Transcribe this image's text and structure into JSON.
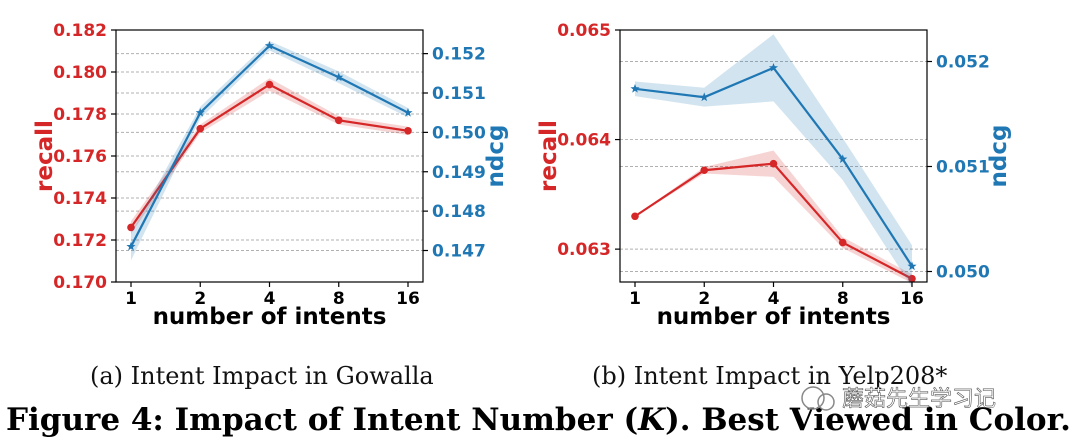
{
  "figure": {
    "caption": "Figure 4: Impact of Intent Number (K). Best Viewed in Color.",
    "caption_parts": {
      "before": "Figure 4: Impact of Intent Number (",
      "var": "K",
      "after": "). Best Viewed in Color."
    },
    "watermark": "蘑菇先生学习记"
  },
  "colors": {
    "recall": "#d62728",
    "ndcg": "#1f77b4",
    "grid": "#b0b0b0"
  },
  "chart_data": [
    {
      "type": "line",
      "subcaption": "(a)  Intent Impact in Gowalla",
      "xlabel": "number of intents",
      "ylabel_left": "recall",
      "ylabel_right": "ndcg",
      "categories": [
        "1",
        "2",
        "4",
        "8",
        "16"
      ],
      "ylim_left": [
        0.17,
        0.182
      ],
      "yticks_left": [
        0.17,
        0.172,
        0.174,
        0.176,
        0.178,
        0.18,
        0.182
      ],
      "yticklabels_left": [
        "0.170",
        "0.172",
        "0.174",
        "0.176",
        "0.178",
        "0.180",
        "0.182"
      ],
      "ylim_right": [
        0.1462,
        0.1526
      ],
      "yticks_right": [
        0.147,
        0.148,
        0.149,
        0.15,
        0.151,
        0.152
      ],
      "yticklabels_right": [
        "0.147",
        "0.148",
        "0.149",
        "0.150",
        "0.151",
        "0.152"
      ],
      "series": [
        {
          "name": "recall",
          "axis": "left",
          "marker": "circle",
          "values": [
            0.1726,
            0.1773,
            0.1794,
            0.1777,
            0.1772
          ],
          "band": [
            0.0003,
            0.0002,
            0.0003,
            0.0002,
            0.0002
          ]
        },
        {
          "name": "ndcg",
          "axis": "right",
          "marker": "star",
          "values": [
            0.1471,
            0.1505,
            0.1522,
            0.1514,
            0.1505
          ],
          "band": [
            0.00035,
            0.00015,
            0.00012,
            0.00015,
            0.00012
          ]
        }
      ]
    },
    {
      "type": "line",
      "subcaption": "(b)  Intent Impact in Yelp208*",
      "xlabel": "number of intents",
      "ylabel_left": "recall",
      "ylabel_right": "ndcg",
      "categories": [
        "1",
        "2",
        "4",
        "8",
        "16"
      ],
      "ylim_left": [
        0.0627,
        0.065
      ],
      "yticks_left": [
        0.063,
        0.064,
        0.065
      ],
      "yticklabels_left": [
        "0.063",
        "0.064",
        "0.065"
      ],
      "ylim_right": [
        0.0499,
        0.0523
      ],
      "yticks_right": [
        0.05,
        0.051,
        0.052
      ],
      "yticklabels_right": [
        "0.050",
        "0.051",
        "0.052"
      ],
      "series": [
        {
          "name": "recall",
          "axis": "left",
          "marker": "circle",
          "values": [
            0.0633,
            0.06372,
            0.06378,
            0.06306,
            0.06273
          ],
          "band": [
            5e-06,
            3e-05,
            0.00012,
            5e-05,
            4e-05
          ]
        },
        {
          "name": "ndcg",
          "axis": "right",
          "marker": "star",
          "values": [
            0.05174,
            0.05166,
            0.05194,
            0.05107,
            0.05005
          ],
          "band": [
            7e-05,
            9e-05,
            0.00032,
            0.0002,
            0.0002
          ]
        }
      ]
    }
  ]
}
